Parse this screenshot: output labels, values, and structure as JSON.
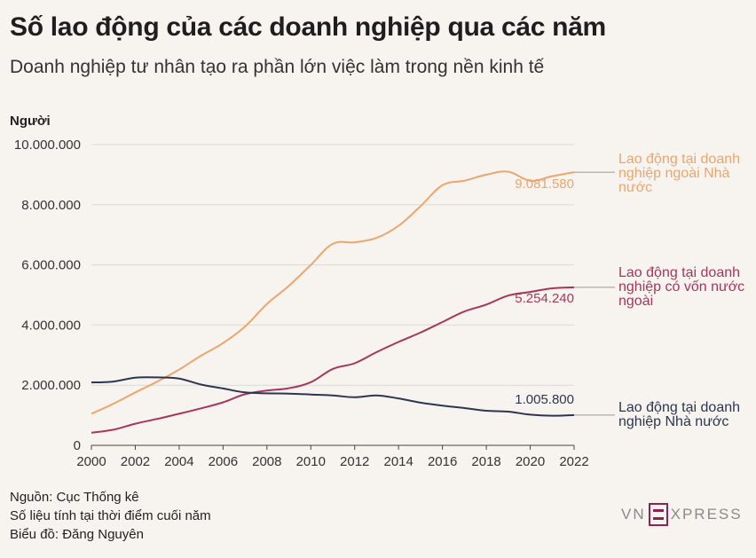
{
  "header": {
    "title": "Số lao động của các doanh nghiệp qua các năm",
    "subtitle": "Doanh nghiệp tư nhân tạo ra phần lớn việc làm trong nền kinh tế"
  },
  "chart_data": {
    "type": "line",
    "ylabel": "Người",
    "ylim": [
      0,
      10000000
    ],
    "xlim": [
      2000,
      2022
    ],
    "yticks": [
      "0",
      "2.000.000",
      "4.000.000",
      "6.000.000",
      "8.000.000",
      "10.000.000"
    ],
    "xticks": [
      "2000",
      "2002",
      "2004",
      "2006",
      "2008",
      "2010",
      "2012",
      "2014",
      "2016",
      "2018",
      "2020",
      "2022"
    ],
    "grid": true,
    "series": [
      {
        "name": "Lao động tại doanh nghiệp ngoài Nhà nước",
        "name_lines": [
          "Lao động tại doanh",
          "nghiệp ngoài Nhà",
          "nước"
        ],
        "color": "#eba56d",
        "end_label": "9.081.580",
        "x": [
          2000,
          2001,
          2002,
          2003,
          2004,
          2005,
          2006,
          2007,
          2008,
          2009,
          2010,
          2011,
          2012,
          2013,
          2014,
          2015,
          2016,
          2017,
          2018,
          2019,
          2020,
          2021,
          2022
        ],
        "values": [
          1050000,
          1380000,
          1760000,
          2120000,
          2520000,
          2980000,
          3400000,
          3950000,
          4700000,
          5300000,
          6000000,
          6700000,
          6750000,
          6900000,
          7300000,
          7950000,
          8650000,
          8800000,
          9000000,
          9100000,
          8800000,
          8950000,
          9081580
        ]
      },
      {
        "name": "Lao động tại doanh nghiệp có vốn nước ngoài",
        "name_lines": [
          "Lao động tại doanh",
          "nghiệp có vốn nước",
          "ngoài"
        ],
        "color": "#a8355d",
        "end_label": "5.254.240",
        "x": [
          2000,
          2001,
          2002,
          2003,
          2004,
          2005,
          2006,
          2007,
          2008,
          2009,
          2010,
          2011,
          2012,
          2013,
          2014,
          2015,
          2016,
          2017,
          2018,
          2019,
          2020,
          2021,
          2022
        ],
        "values": [
          420000,
          520000,
          720000,
          880000,
          1050000,
          1230000,
          1430000,
          1700000,
          1820000,
          1900000,
          2100000,
          2540000,
          2730000,
          3100000,
          3440000,
          3750000,
          4100000,
          4450000,
          4680000,
          4980000,
          5100000,
          5220000,
          5254240
        ]
      },
      {
        "name": "Lao động tại doanh nghiệp Nhà nước",
        "name_lines": [
          "Lao động tại doanh",
          "nghiệp Nhà nước"
        ],
        "color": "#2d3550",
        "end_label": "1.005.800",
        "x": [
          2000,
          2001,
          2002,
          2003,
          2004,
          2005,
          2006,
          2007,
          2008,
          2009,
          2010,
          2011,
          2012,
          2013,
          2014,
          2015,
          2016,
          2017,
          2018,
          2019,
          2020,
          2021,
          2022
        ],
        "values": [
          2090000,
          2120000,
          2250000,
          2260000,
          2220000,
          2020000,
          1890000,
          1760000,
          1730000,
          1720000,
          1690000,
          1660000,
          1600000,
          1660000,
          1560000,
          1420000,
          1320000,
          1240000,
          1150000,
          1120000,
          1020000,
          985000,
          1005800
        ]
      }
    ]
  },
  "footer": {
    "source": "Nguồn: Cục Thống kê",
    "note": "Số liệu tính tại thời điểm cuối năm",
    "author": "Biểu đồ: Đăng Nguyên",
    "logo_left": "VN",
    "logo_right": "XPRESS"
  }
}
